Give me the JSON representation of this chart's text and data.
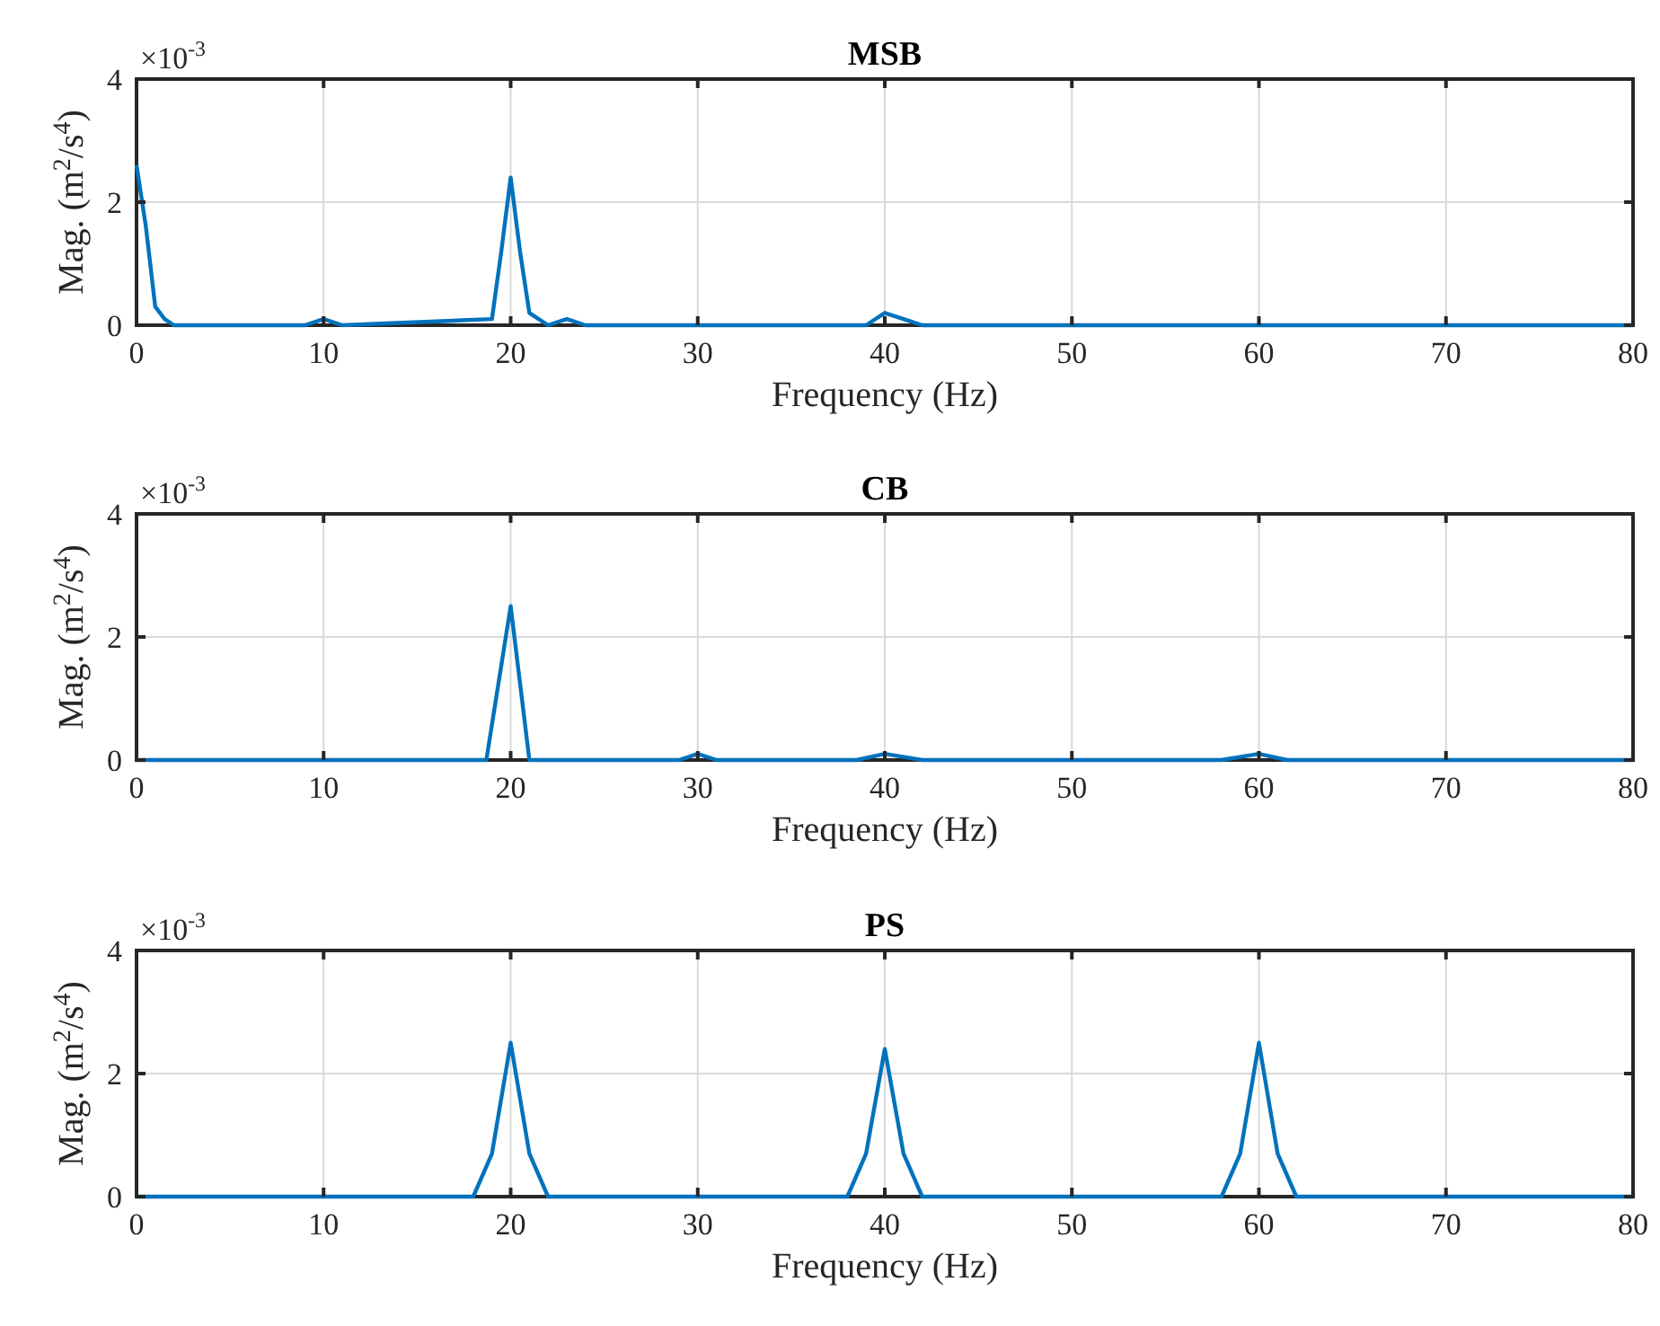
{
  "chart_data": [
    {
      "type": "line",
      "title": "MSB",
      "xlabel": "Frequency (Hz)",
      "ylabel": "Mag. (m$^{2}$/s$^{4}$)",
      "annotations": [
        "×10$^{-3}$"
      ],
      "xlim": [
        0,
        80
      ],
      "xticks": [
        0,
        10,
        20,
        30,
        40,
        50,
        60,
        70,
        80
      ],
      "ylim": [
        0,
        4
      ],
      "yticks": [
        0,
        2,
        4
      ],
      "grid": true,
      "series": [
        {
          "color": "#0072bd",
          "x": [
            0,
            0.5,
            1,
            1.5,
            2,
            9,
            10,
            11,
            19,
            19.5,
            20,
            20.5,
            21,
            22,
            23,
            24,
            39,
            40,
            41,
            42,
            80
          ],
          "values": [
            2.6,
            1.6,
            0.3,
            0.1,
            0,
            0,
            0.1,
            0,
            0.1,
            1.2,
            2.4,
            1.2,
            0.2,
            0,
            0.1,
            0,
            0,
            0.2,
            0.1,
            0,
            0
          ]
        }
      ]
    },
    {
      "type": "line",
      "title": "CB",
      "xlabel": "Frequency (Hz)",
      "ylabel": "Mag. (m$^{2}$/s$^{4}$)",
      "annotations": [
        "×10$^{-3}$"
      ],
      "xlim": [
        0,
        80
      ],
      "xticks": [
        0,
        10,
        20,
        30,
        40,
        50,
        60,
        70,
        80
      ],
      "ylim": [
        0,
        4
      ],
      "yticks": [
        0,
        2,
        4
      ],
      "grid": true,
      "series": [
        {
          "color": "#0072bd",
          "x": [
            0,
            18.7,
            20,
            21,
            29,
            30,
            31,
            38.5,
            40,
            42,
            58,
            60,
            61.5,
            80
          ],
          "values": [
            0,
            0,
            2.5,
            0,
            0,
            0.1,
            0,
            0,
            0.1,
            0,
            0,
            0.1,
            0,
            0
          ]
        }
      ]
    },
    {
      "type": "line",
      "title": "PS",
      "xlabel": "Frequency (Hz)",
      "ylabel": "Mag. (m$^{2}$/s$^{4}$)",
      "annotations": [
        "×10$^{-3}$"
      ],
      "xlim": [
        0,
        80
      ],
      "xticks": [
        0,
        10,
        20,
        30,
        40,
        50,
        60,
        70,
        80
      ],
      "ylim": [
        0,
        4
      ],
      "yticks": [
        0,
        2,
        4
      ],
      "grid": true,
      "series": [
        {
          "color": "#0072bd",
          "x": [
            0,
            18,
            19,
            20,
            21,
            22,
            38,
            39,
            40,
            41,
            42,
            58,
            59,
            60,
            61,
            62,
            80
          ],
          "values": [
            0,
            0,
            0.7,
            2.5,
            0.7,
            0,
            0,
            0.7,
            2.4,
            0.7,
            0,
            0,
            0.7,
            2.5,
            0.7,
            0,
            0
          ]
        }
      ]
    }
  ]
}
